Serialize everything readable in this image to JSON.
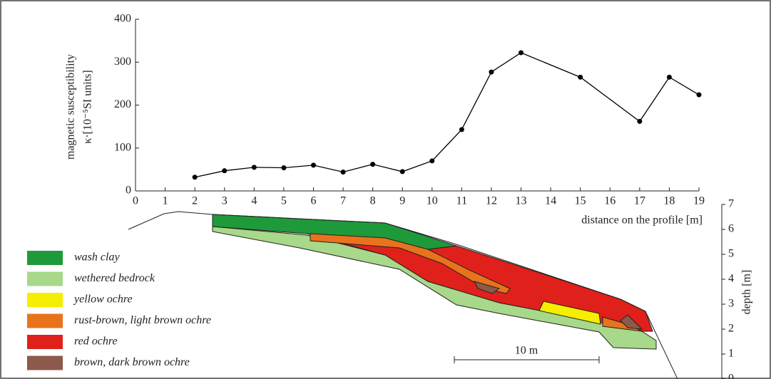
{
  "chart_data": [
    {
      "type": "line",
      "ylabel": [
        "magnetic susceptibility",
        "κ·[10⁻⁵SI units]"
      ],
      "xlabel": "distance on the profile [m]",
      "x": [
        2,
        3,
        4,
        5,
        6,
        7,
        8,
        9,
        10,
        11,
        12,
        13,
        15,
        17,
        18,
        19
      ],
      "series": [
        {
          "color": "#000000",
          "values": [
            32,
            47,
            55,
            54,
            60,
            44,
            62,
            45,
            70,
            143,
            277,
            322,
            265,
            162,
            265,
            224
          ]
        }
      ],
      "xlim": [
        0,
        19
      ],
      "xticks": [
        0,
        1,
        2,
        3,
        4,
        5,
        6,
        7,
        8,
        9,
        10,
        11,
        12,
        13,
        14,
        15,
        16,
        17,
        18,
        19
      ],
      "ylim": [
        0,
        400
      ],
      "yticks": [
        0,
        100,
        200,
        300,
        400
      ]
    },
    {
      "type": "section",
      "ylabel": "depth [m]",
      "ylim": [
        0,
        7
      ],
      "yticks": [
        0,
        1,
        2,
        3,
        4,
        5,
        6,
        7
      ],
      "scale_label": "10 m",
      "legend": [
        {
          "label": "wash clay",
          "color": "#1f9a3a"
        },
        {
          "label": "wethered bedrock",
          "color": "#a8d88a"
        },
        {
          "label": "yellow ochre",
          "color": "#f5ee00"
        },
        {
          "label": "rust-brown, light brown ochre",
          "color": "#e8731c"
        },
        {
          "label": "red ochre",
          "color": "#e0201a"
        },
        {
          "label": "brown, dark brown ochre",
          "color": "#8c5a4a"
        }
      ]
    }
  ]
}
